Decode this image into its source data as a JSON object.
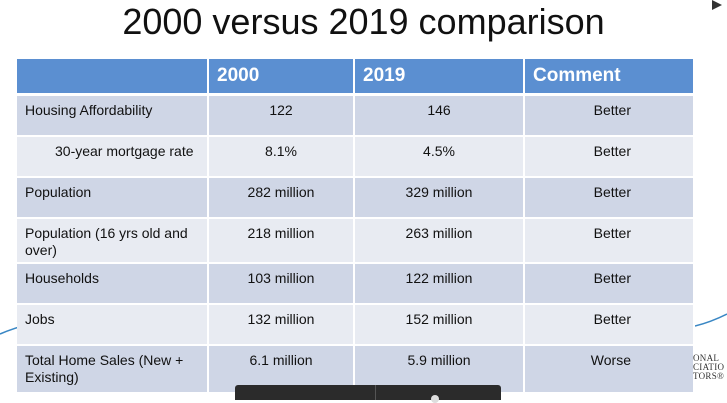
{
  "slide": {
    "title": "2000 versus 2019 comparison"
  },
  "table": {
    "headers": [
      "",
      "2000",
      "2019",
      "Comment"
    ],
    "rows": [
      {
        "label": "Housing Affordability",
        "v2000": "122",
        "v2019": "146",
        "comment": "Better"
      },
      {
        "label": "30-year mortgage rate",
        "v2000": "8.1%",
        "v2019": "4.5%",
        "comment": "Better"
      },
      {
        "label": "Population",
        "v2000": "282 million",
        "v2019": "329 million",
        "comment": "Better"
      },
      {
        "label": "Population (16 yrs old and over)",
        "v2000": "218 million",
        "v2019": "263 million",
        "comment": "Better"
      },
      {
        "label": "Households",
        "v2000": "103 million",
        "v2019": "122 million",
        "comment": "Better"
      },
      {
        "label": "Jobs",
        "v2000": "132 million",
        "v2019": "152 million",
        "comment": "Better"
      },
      {
        "label": "Total Home Sales (New + Existing)",
        "v2000": "6.1 million",
        "v2019": "5.9 million",
        "comment": "Worse"
      }
    ]
  },
  "logo": {
    "line1": "ONAL",
    "line2": "CIATIO",
    "line3": "TORS®"
  },
  "colors": {
    "header_bg": "#5b8fd1",
    "row_odd_bg": "#cfd6e6",
    "row_even_bg": "#e8ebf2",
    "accent_line": "#3a87c4"
  }
}
